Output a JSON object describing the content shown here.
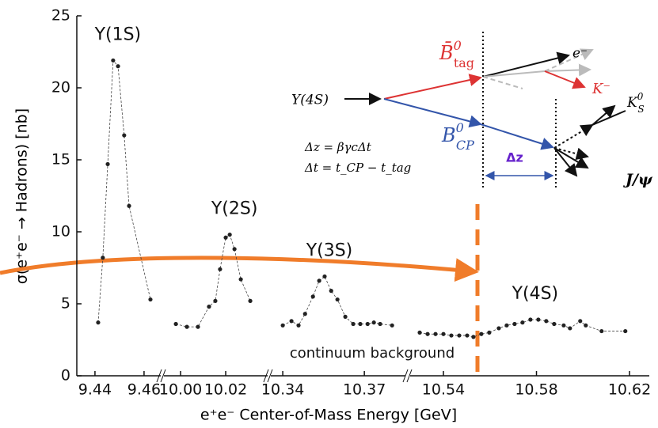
{
  "chart_data": {
    "type": "scatter",
    "xlabel": "e⁺e⁻ Center-of-Mass Energy [GeV]",
    "ylabel": "σ(e⁺e⁻ → Hadrons) [nb]",
    "ylim": [
      0,
      25
    ],
    "yticks": [
      0,
      5,
      10,
      15,
      20,
      25
    ],
    "annotation": "continuum background",
    "color": "#222",
    "segments": [
      {
        "xlim": [
          9.4326,
          9.4668
        ],
        "xticks": [
          9.44,
          9.46
        ],
        "series": [
          {
            "name": "Υ(1S)",
            "x": [
              9.4413,
              9.4432,
              9.4452,
              9.4474,
              9.4494,
              9.4519,
              9.4539,
              9.4626
            ],
            "values": [
              3.7,
              8.2,
              14.7,
              21.9,
              21.5,
              16.7,
              11.8,
              5.3
            ]
          }
        ]
      },
      {
        "xlim": [
          9.9926,
          10.0386
        ],
        "xticks": [
          {
            "value": 10,
            "label": "10.00"
          },
          10.02
        ],
        "series": [
          {
            "name": "Υ(2S)",
            "x": [
              9.9979,
              10.0028,
              10.0077,
              10.0126,
              10.0154,
              10.0175,
              10.02,
              10.0218,
              10.0239,
              10.0267,
              10.0309
            ],
            "values": [
              3.6,
              3.4,
              3.4,
              4.8,
              5.2,
              7.4,
              9.6,
              9.8,
              8.8,
              6.7,
              5.2
            ]
          }
        ]
      },
      {
        "xlim": [
          10.3356,
          10.3851
        ],
        "xticks": [
          10.34,
          10.37
        ],
        "series": [
          {
            "name": "Υ(3S)",
            "x": [
              10.34,
              10.3432,
              10.3458,
              10.3482,
              10.3511,
              10.3534,
              10.3554,
              10.3578,
              10.3601,
              10.363,
              10.3659,
              10.3685,
              10.3712,
              10.3735,
              10.3758,
              10.3802
            ],
            "values": [
              3.5,
              3.8,
              3.5,
              4.3,
              5.5,
              6.6,
              6.9,
              5.9,
              5.3,
              4.1,
              3.6,
              3.6,
              3.6,
              3.7,
              3.6,
              3.5
            ]
          }
        ]
      },
      {
        "xlim": [
          10.5257,
          10.6285
        ],
        "xticks": [
          10.54,
          10.58,
          10.62
        ],
        "series": [
          {
            "name": "Υ(4S)",
            "x": [
              10.5298,
              10.5332,
              10.5366,
              10.54,
              10.5434,
              10.5468,
              10.5502,
              10.5529,
              10.5563,
              10.5597,
              10.5638,
              10.5672,
              10.5706,
              10.574,
              10.5774,
              10.5808,
              10.5842,
              10.5876,
              10.5917,
              10.5944,
              10.5988,
              10.6012,
              10.608,
              10.6182
            ],
            "values": [
              3.0,
              2.9,
              2.9,
              2.9,
              2.8,
              2.8,
              2.8,
              2.7,
              2.9,
              3.0,
              3.3,
              3.5,
              3.6,
              3.7,
              3.9,
              3.9,
              3.8,
              3.6,
              3.5,
              3.3,
              3.8,
              3.5,
              3.1,
              3.1
            ]
          }
        ]
      }
    ]
  },
  "inset": {
    "upsilon": "Υ(4S)",
    "b_tag": {
      "base": "B̄",
      "sup": "0",
      "sub": "tag"
    },
    "b_cp": {
      "base": "B",
      "sup": "0",
      "sub": "CP"
    },
    "electron": "e⁻",
    "kaon": "K⁻",
    "k_short": {
      "base": "K",
      "sup": "0",
      "sub": "S"
    },
    "jpsi": "J/ψ",
    "dz_formula": "Δz = βγcΔt",
    "dt_formula": "Δt = t_CP − t_tag",
    "dz_label": "Δz"
  }
}
